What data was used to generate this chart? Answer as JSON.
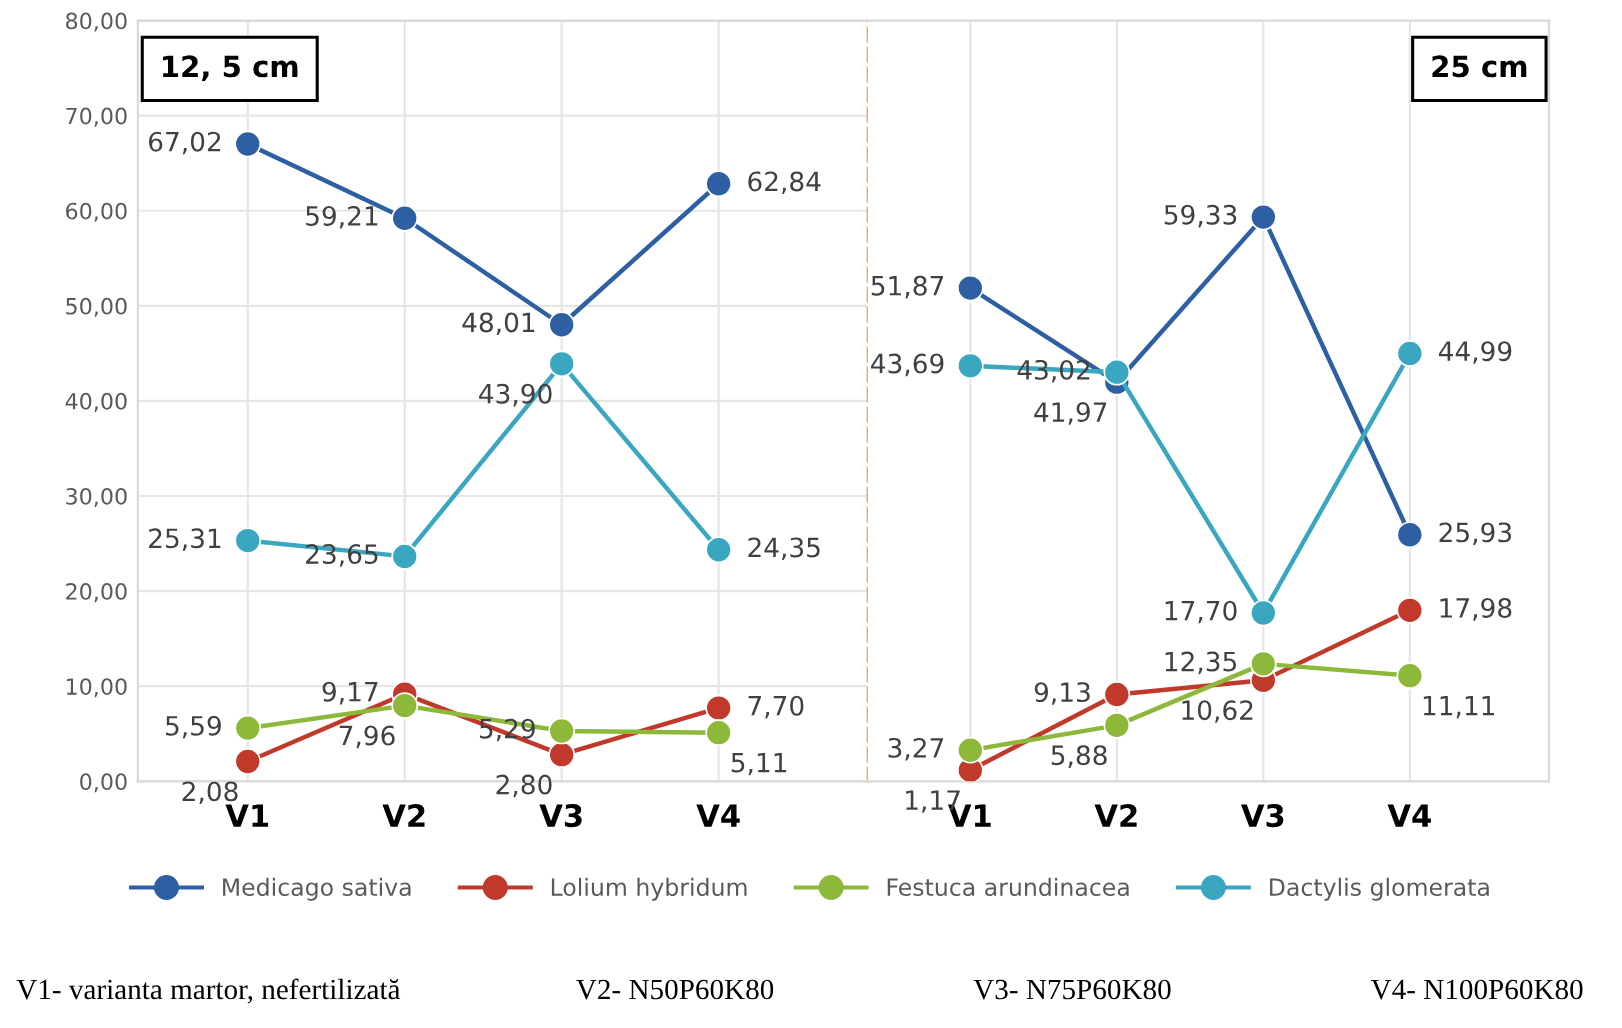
{
  "chart_data": [
    {
      "type": "line",
      "categories": [
        "V1",
        "V2",
        "V3",
        "V4"
      ],
      "ylim": [
        0,
        80
      ],
      "yticks": [
        {
          "value": 0,
          "label": "0,00"
        },
        {
          "value": 10,
          "label": "10,00"
        },
        {
          "value": 20,
          "label": "20,00"
        },
        {
          "value": 30,
          "label": "30,00"
        },
        {
          "value": 40,
          "label": "40,00"
        },
        {
          "value": 50,
          "label": "50,00"
        },
        {
          "value": 60,
          "label": "60,00"
        },
        {
          "value": 70,
          "label": "70,00"
        },
        {
          "value": 80,
          "label": "80,00"
        }
      ],
      "grid": true,
      "marker": "circle",
      "legend": "bottom",
      "annotations": [
        "12, 5 cm",
        "V1- varianta martor, nefertilizată",
        "V2- N50P60K80",
        "V3- N75P60K80",
        "V4- N100P60K80"
      ],
      "series": [
        {
          "name": "Medicago sativa",
          "color": "#2e5fa3",
          "values": [
            67.02,
            59.21,
            48.01,
            62.84
          ],
          "value_labels": [
            "67,02",
            "59,21",
            "48,01",
            "62,84"
          ]
        },
        {
          "name": "Lolium hybridum",
          "color": "#c0392b",
          "values": [
            2.08,
            9.17,
            2.8,
            7.7
          ],
          "value_labels": [
            "2,08",
            "9,17",
            "2,80",
            "7,70"
          ]
        },
        {
          "name": "Festuca arundinacea",
          "color": "#8db83a",
          "values": [
            5.59,
            7.96,
            5.29,
            5.11
          ],
          "value_labels": [
            "5,59",
            "7,96",
            "5,29",
            "5,11"
          ]
        },
        {
          "name": "Dactylis glomerata",
          "color": "#3aa6c0",
          "values": [
            25.31,
            23.65,
            43.9,
            24.35
          ],
          "value_labels": [
            "25,31",
            "23,65",
            "43,90",
            "24,35"
          ]
        }
      ]
    },
    {
      "type": "line",
      "categories": [
        "V1",
        "V2",
        "V3",
        "V4"
      ],
      "ylim": [
        0,
        80
      ],
      "tick_labels": "x",
      "grid": true,
      "marker": "circle",
      "legend": "bottom",
      "annotations": [
        "25 cm"
      ],
      "series": [
        {
          "color": "#2e5fa3",
          "values": [
            51.87,
            41.97,
            59.33,
            25.93
          ],
          "value_labels": [
            "51,87",
            "41,97",
            "59,33",
            "25,93"
          ]
        },
        {
          "color": "#c0392b",
          "values": [
            1.17,
            9.13,
            10.62,
            17.98
          ],
          "value_labels": [
            "1,17",
            "9,13",
            "10,62",
            "17,98"
          ]
        },
        {
          "color": "#8db83a",
          "values": [
            3.27,
            5.88,
            12.35,
            11.11
          ],
          "value_labels": [
            "3,27",
            "5,88",
            "12,35",
            "11,11"
          ]
        },
        {
          "color": "#3aa6c0",
          "values": [
            43.69,
            43.02,
            17.7,
            44.99
          ],
          "value_labels": [
            "43,69",
            "43,02",
            "17,70",
            "44,99"
          ]
        }
      ]
    }
  ]
}
